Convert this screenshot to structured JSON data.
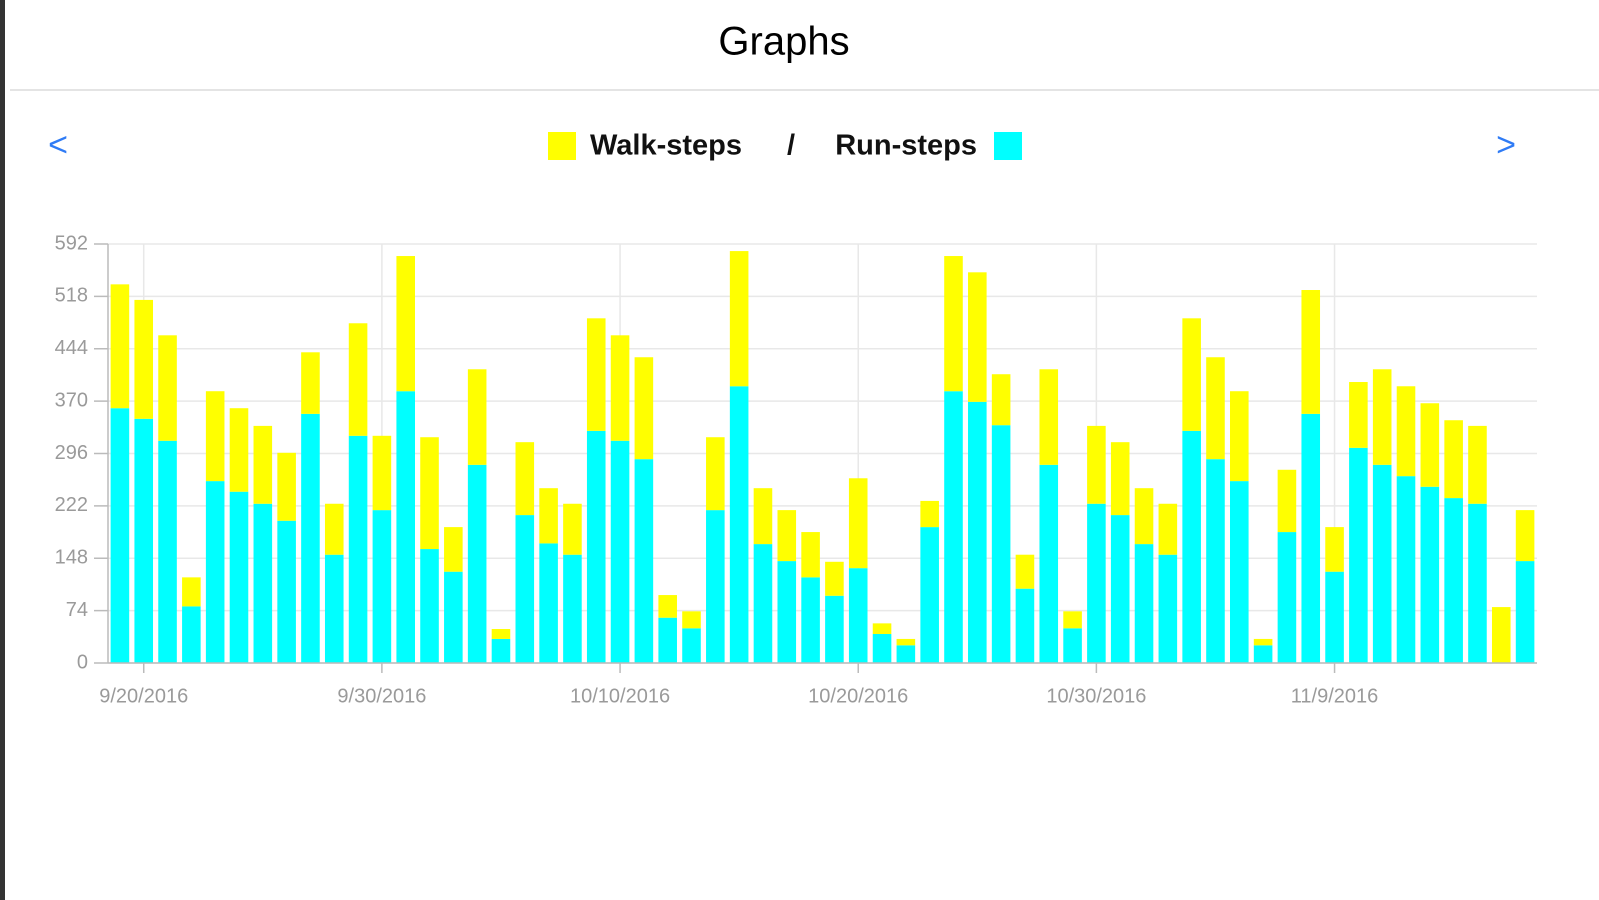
{
  "header": {
    "title": "Graphs"
  },
  "nav": {
    "prev": "<",
    "next": ">"
  },
  "chart_data": {
    "type": "bar",
    "stacked": true,
    "legend_separator": "/",
    "categories": [
      null,
      "9/20/2016",
      null,
      null,
      null,
      null,
      null,
      null,
      null,
      null,
      null,
      "9/30/2016",
      null,
      null,
      null,
      null,
      null,
      null,
      null,
      null,
      null,
      "10/10/2016",
      null,
      null,
      null,
      null,
      null,
      null,
      null,
      null,
      null,
      "10/20/2016",
      null,
      null,
      null,
      null,
      null,
      null,
      null,
      null,
      null,
      "10/30/2016",
      null,
      null,
      null,
      null,
      null,
      null,
      null,
      null,
      null,
      "11/9/2016",
      null,
      null,
      null,
      null,
      null,
      null,
      null,
      null
    ],
    "series": [
      {
        "name": "Run-steps",
        "color": "#00ffff",
        "values": [
          360,
          345,
          314,
          80,
          257,
          242,
          225,
          201,
          352,
          153,
          321,
          216,
          384,
          161,
          129,
          280,
          34,
          209,
          169,
          153,
          328,
          314,
          288,
          64,
          49,
          216,
          391,
          168,
          144,
          121,
          95,
          134,
          41,
          25,
          192,
          384,
          369,
          336,
          105,
          280,
          49,
          225,
          209,
          168,
          153,
          328,
          288,
          257,
          25,
          185,
          352,
          129,
          304,
          280,
          264,
          249,
          233,
          225,
          0,
          144
        ]
      },
      {
        "name": "Walk-steps",
        "color": "#ffff00",
        "values": [
          175,
          168,
          149,
          41,
          127,
          118,
          110,
          96,
          87,
          72,
          159,
          105,
          191,
          158,
          63,
          135,
          14,
          103,
          78,
          72,
          159,
          149,
          144,
          32,
          24,
          103,
          191,
          79,
          72,
          64,
          48,
          127,
          15,
          9,
          37,
          191,
          183,
          72,
          48,
          135,
          24,
          110,
          103,
          79,
          72,
          159,
          144,
          127,
          9,
          88,
          175,
          63,
          93,
          135,
          127,
          118,
          110,
          110,
          79,
          72
        ]
      }
    ],
    "ylim": [
      0,
      592
    ],
    "yticks": [
      0,
      74,
      148,
      222,
      296,
      370,
      444,
      518,
      592
    ],
    "grid": true
  }
}
